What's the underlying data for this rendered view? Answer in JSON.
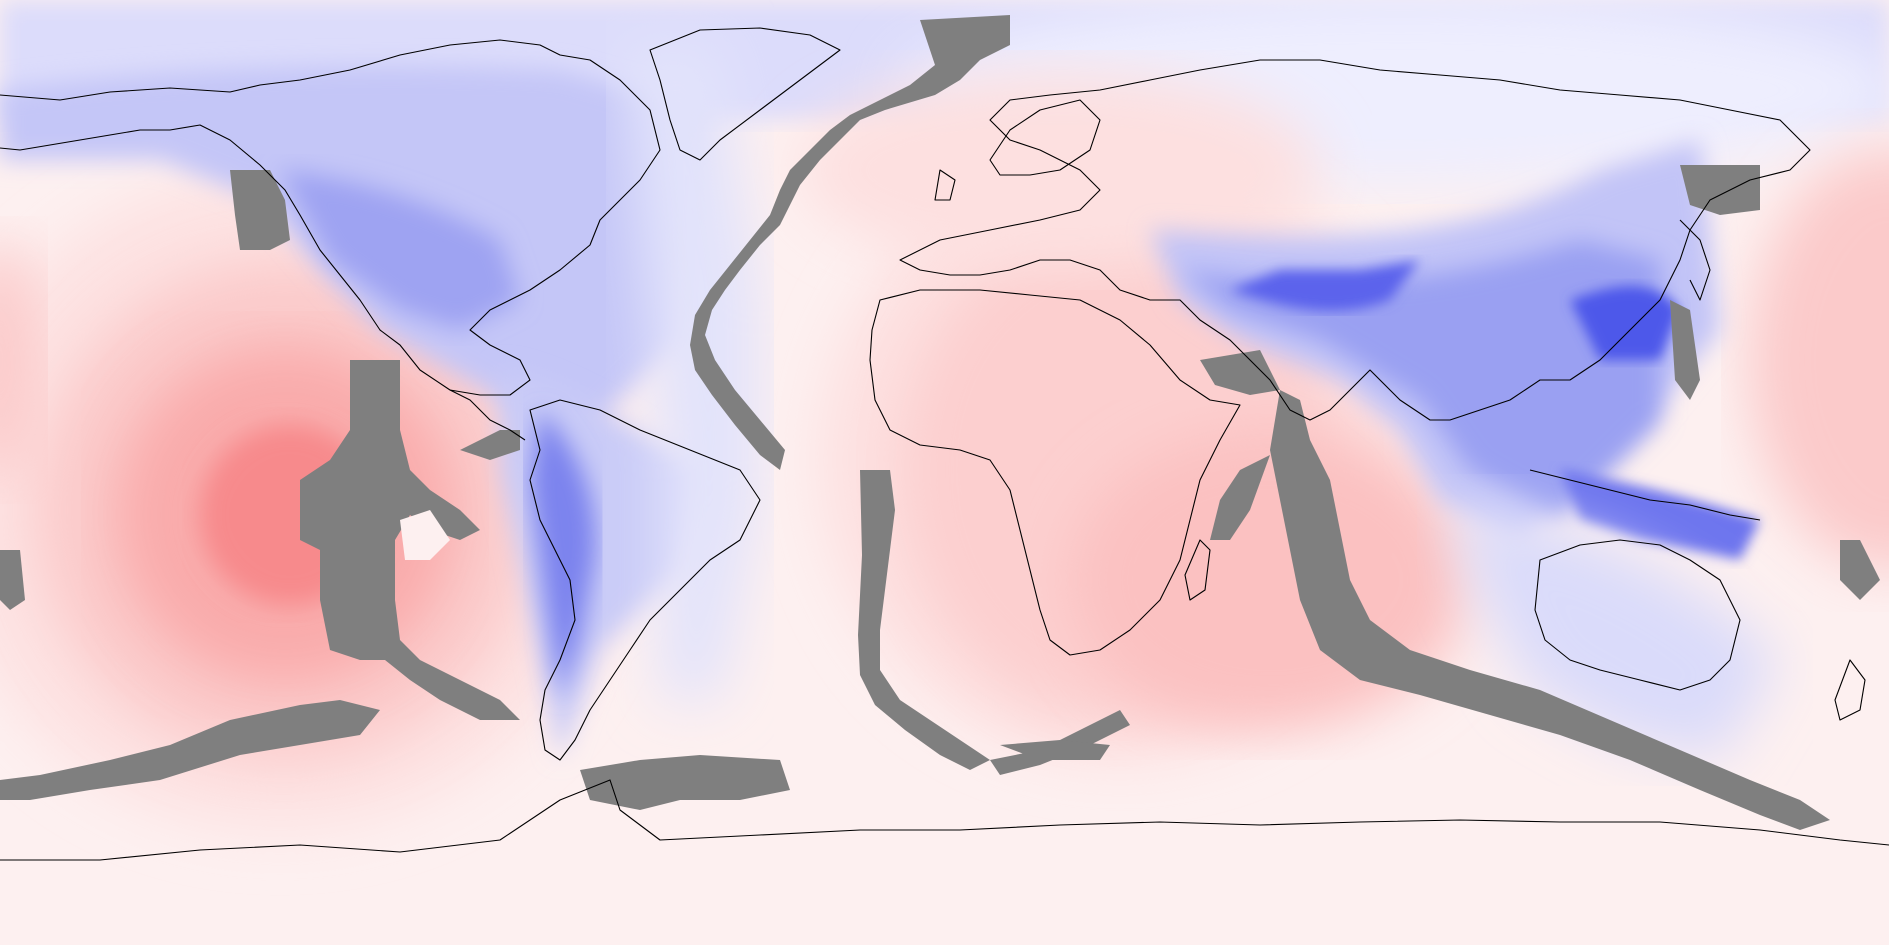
{
  "map": {
    "projection": "equirectangular",
    "extent": {
      "lon": [
        -180,
        180
      ],
      "lat": [
        -90,
        90
      ]
    },
    "colors": {
      "ocean_base": "#fdf0f0",
      "positive_strong": "#f57f84",
      "positive_light": "#fbdcdd",
      "negative_light": "#dfe0fb",
      "negative_mid": "#b7baf5",
      "negative_strong": "#3a45e8",
      "mask": "#7f7f7f",
      "coastline": "#000000"
    },
    "layers": [
      "anomaly-contours",
      "masked-bands",
      "coastlines"
    ]
  }
}
